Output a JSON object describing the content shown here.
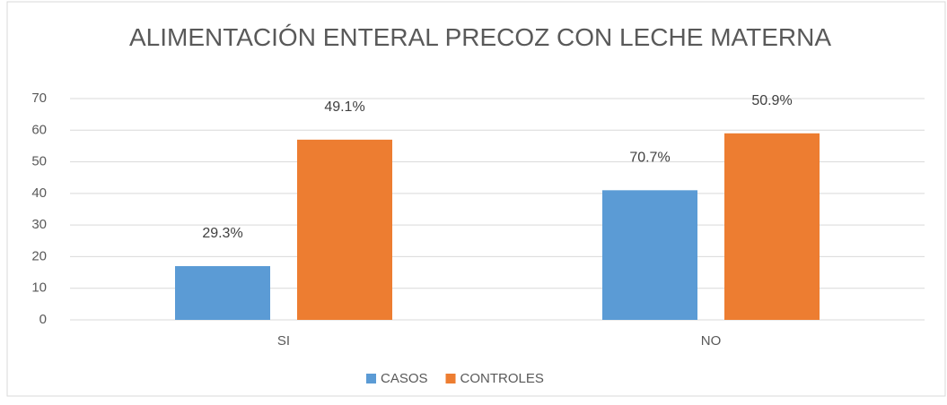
{
  "chart_data": {
    "type": "bar",
    "title": "ALIMENTACIÓN ENTERAL PRECOZ CON LECHE MATERNA",
    "categories": [
      "SI",
      "NO"
    ],
    "series": [
      {
        "name": "CASOS",
        "color": "#5b9bd5",
        "values": [
          17,
          41
        ],
        "labels": [
          "29.3%",
          "70.7%"
        ]
      },
      {
        "name": "CONTROLES",
        "color": "#ed7d31",
        "values": [
          57,
          59
        ],
        "labels": [
          "49.1%",
          "50.9%"
        ]
      }
    ],
    "ylim": [
      0,
      70
    ],
    "yticks": [
      0,
      10,
      20,
      30,
      40,
      50,
      60,
      70
    ],
    "grid": true,
    "legend": "bottom"
  }
}
